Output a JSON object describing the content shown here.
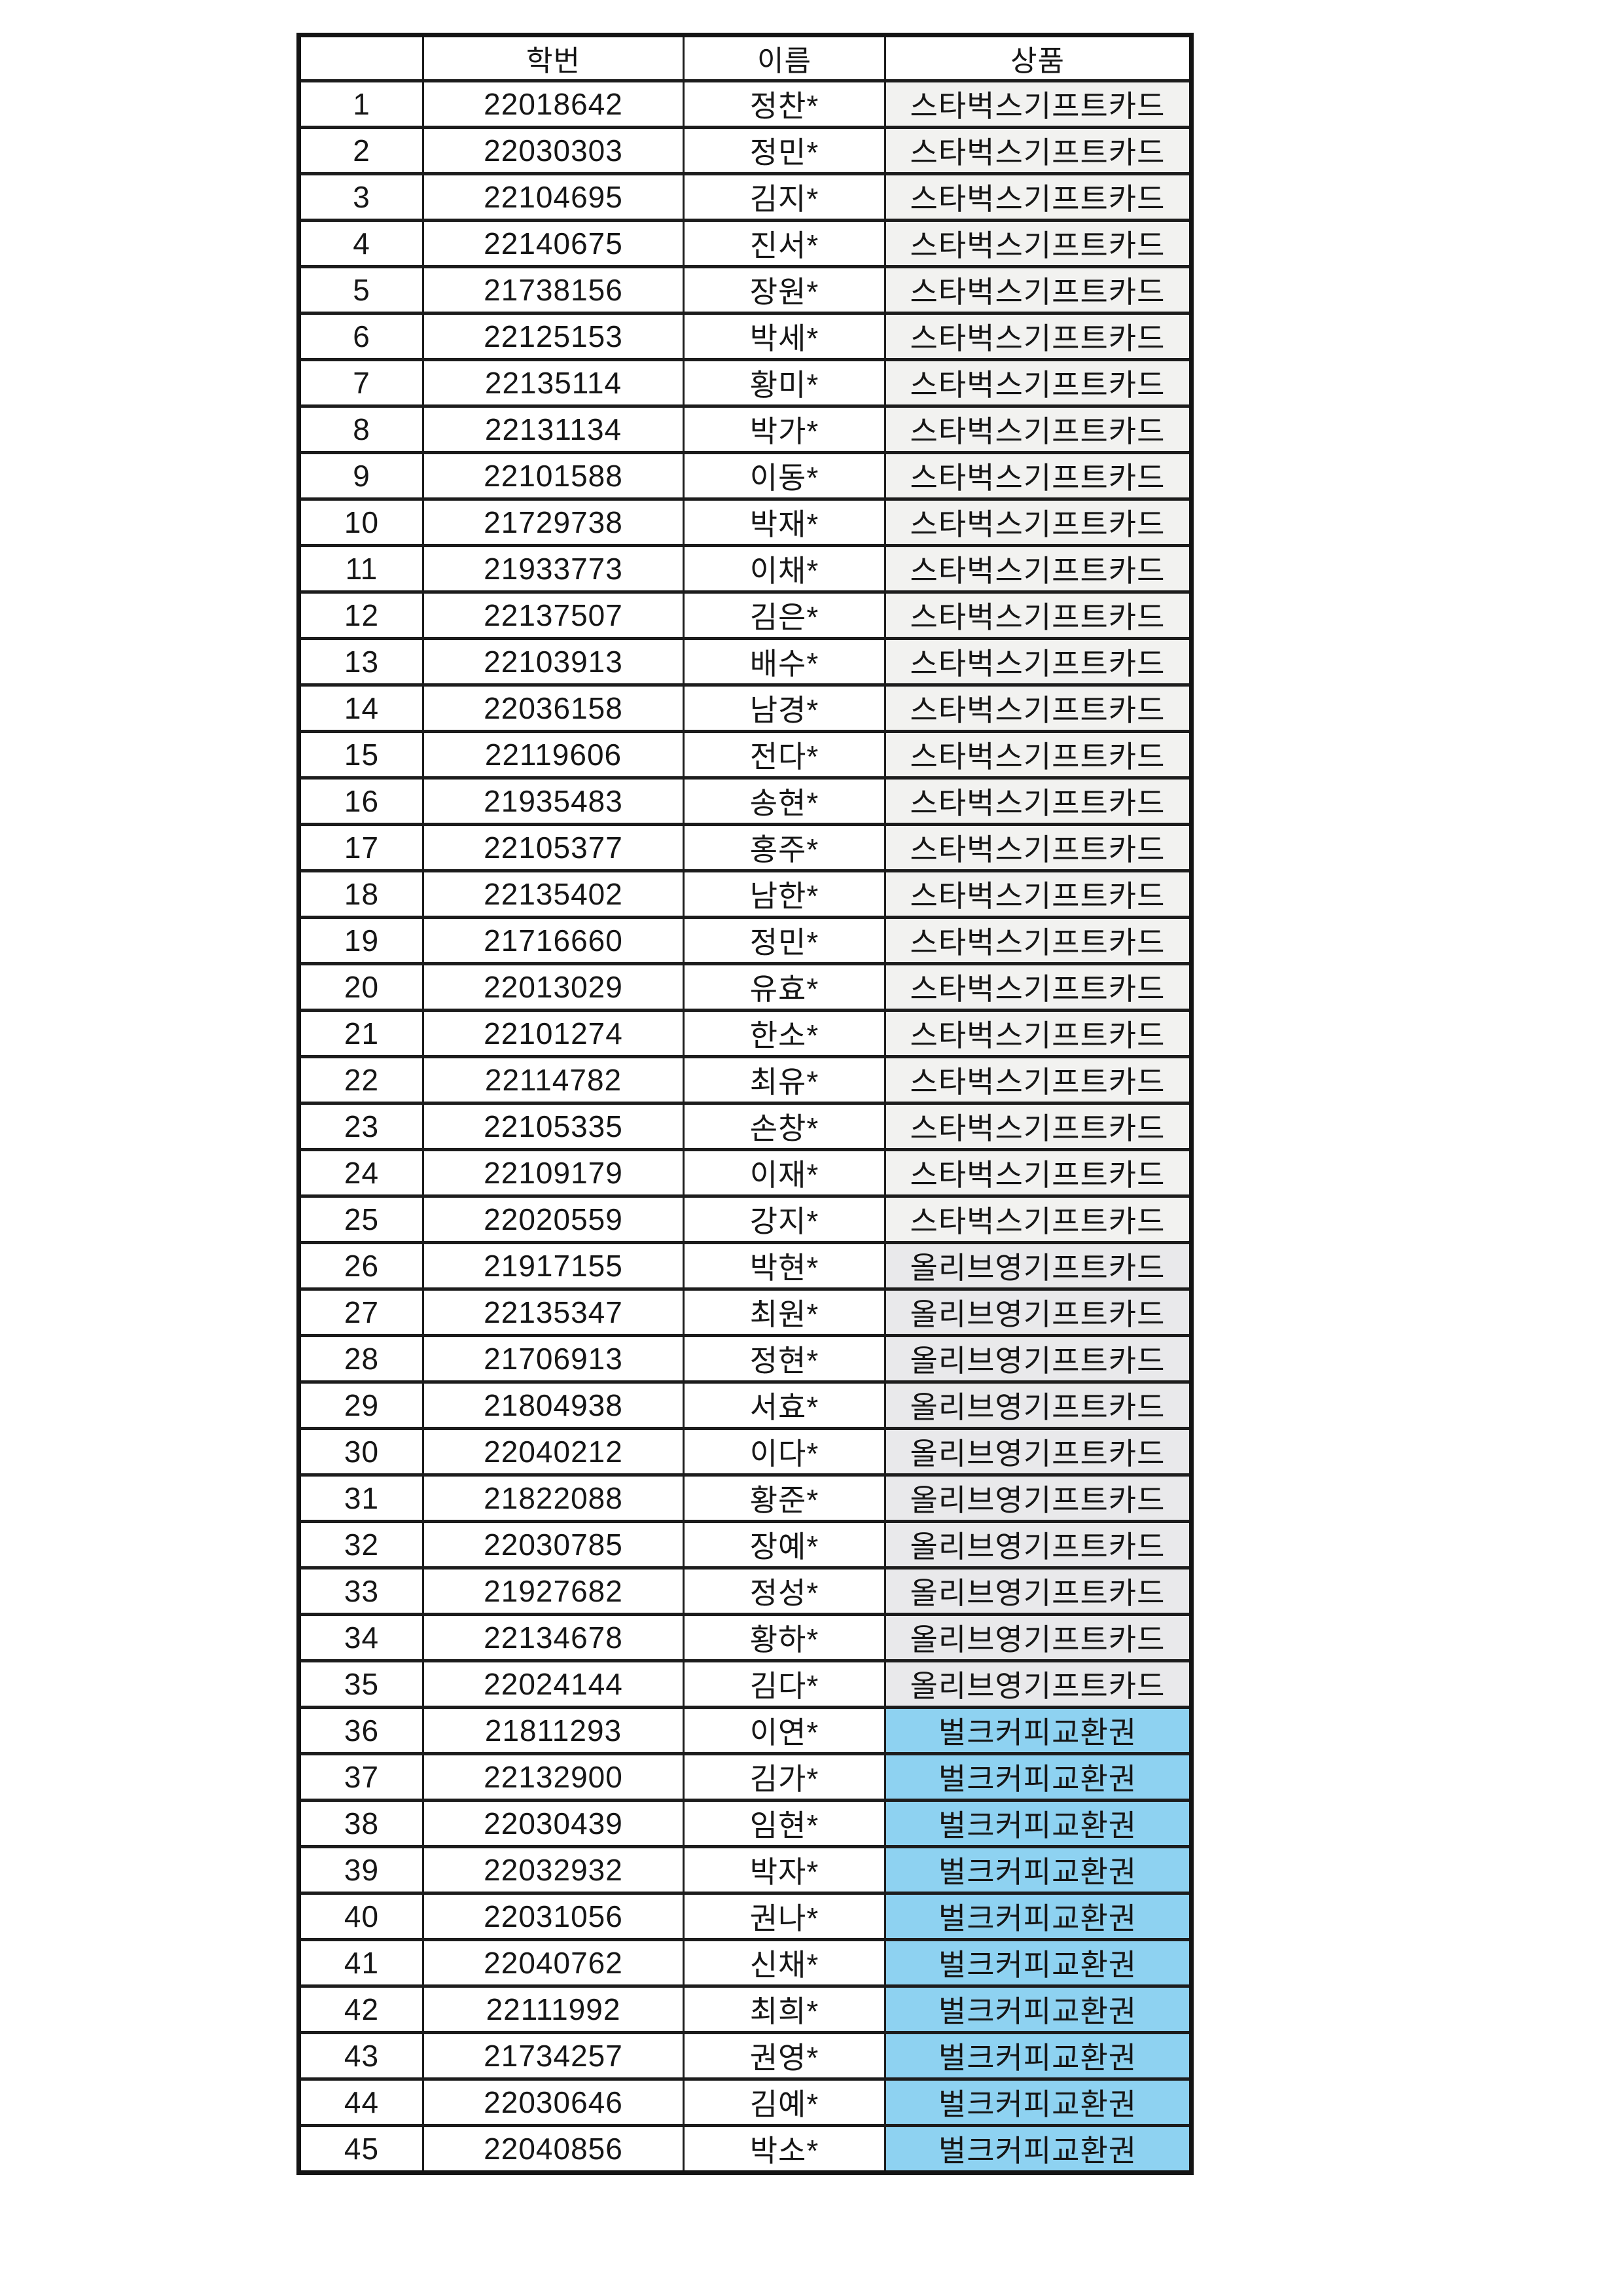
{
  "table": {
    "headers": [
      "",
      "학번",
      "이름",
      "상품"
    ],
    "rows": [
      {
        "no": "1",
        "student_id": "22018642",
        "name": "정찬*",
        "prize": "스타벅스기프트카드"
      },
      {
        "no": "2",
        "student_id": "22030303",
        "name": "정민*",
        "prize": "스타벅스기프트카드"
      },
      {
        "no": "3",
        "student_id": "22104695",
        "name": "김지*",
        "prize": "스타벅스기프트카드"
      },
      {
        "no": "4",
        "student_id": "22140675",
        "name": "진서*",
        "prize": "스타벅스기프트카드"
      },
      {
        "no": "5",
        "student_id": "21738156",
        "name": "장원*",
        "prize": "스타벅스기프트카드"
      },
      {
        "no": "6",
        "student_id": "22125153",
        "name": "박세*",
        "prize": "스타벅스기프트카드"
      },
      {
        "no": "7",
        "student_id": "22135114",
        "name": "황미*",
        "prize": "스타벅스기프트카드"
      },
      {
        "no": "8",
        "student_id": "22131134",
        "name": "박가*",
        "prize": "스타벅스기프트카드"
      },
      {
        "no": "9",
        "student_id": "22101588",
        "name": "이동*",
        "prize": "스타벅스기프트카드"
      },
      {
        "no": "10",
        "student_id": "21729738",
        "name": "박재*",
        "prize": "스타벅스기프트카드"
      },
      {
        "no": "11",
        "student_id": "21933773",
        "name": "이채*",
        "prize": "스타벅스기프트카드"
      },
      {
        "no": "12",
        "student_id": "22137507",
        "name": "김은*",
        "prize": "스타벅스기프트카드"
      },
      {
        "no": "13",
        "student_id": "22103913",
        "name": "배수*",
        "prize": "스타벅스기프트카드"
      },
      {
        "no": "14",
        "student_id": "22036158",
        "name": "남경*",
        "prize": "스타벅스기프트카드"
      },
      {
        "no": "15",
        "student_id": "22119606",
        "name": "전다*",
        "prize": "스타벅스기프트카드"
      },
      {
        "no": "16",
        "student_id": "21935483",
        "name": "송현*",
        "prize": "스타벅스기프트카드"
      },
      {
        "no": "17",
        "student_id": "22105377",
        "name": "홍주*",
        "prize": "스타벅스기프트카드"
      },
      {
        "no": "18",
        "student_id": "22135402",
        "name": "남한*",
        "prize": "스타벅스기프트카드"
      },
      {
        "no": "19",
        "student_id": "21716660",
        "name": "정민*",
        "prize": "스타벅스기프트카드"
      },
      {
        "no": "20",
        "student_id": "22013029",
        "name": "유효*",
        "prize": "스타벅스기프트카드"
      },
      {
        "no": "21",
        "student_id": "22101274",
        "name": "한소*",
        "prize": "스타벅스기프트카드"
      },
      {
        "no": "22",
        "student_id": "22114782",
        "name": "최유*",
        "prize": "스타벅스기프트카드"
      },
      {
        "no": "23",
        "student_id": "22105335",
        "name": "손창*",
        "prize": "스타벅스기프트카드"
      },
      {
        "no": "24",
        "student_id": "22109179",
        "name": "이재*",
        "prize": "스타벅스기프트카드"
      },
      {
        "no": "25",
        "student_id": "22020559",
        "name": "강지*",
        "prize": "스타벅스기프트카드"
      },
      {
        "no": "26",
        "student_id": "21917155",
        "name": "박현*",
        "prize": "올리브영기프트카드"
      },
      {
        "no": "27",
        "student_id": "22135347",
        "name": "최원*",
        "prize": "올리브영기프트카드"
      },
      {
        "no": "28",
        "student_id": "21706913",
        "name": "정현*",
        "prize": "올리브영기프트카드"
      },
      {
        "no": "29",
        "student_id": "21804938",
        "name": "서효*",
        "prize": "올리브영기프트카드"
      },
      {
        "no": "30",
        "student_id": "22040212",
        "name": "이다*",
        "prize": "올리브영기프트카드"
      },
      {
        "no": "31",
        "student_id": "21822088",
        "name": "황준*",
        "prize": "올리브영기프트카드"
      },
      {
        "no": "32",
        "student_id": "22030785",
        "name": "장예*",
        "prize": "올리브영기프트카드"
      },
      {
        "no": "33",
        "student_id": "21927682",
        "name": "정성*",
        "prize": "올리브영기프트카드"
      },
      {
        "no": "34",
        "student_id": "22134678",
        "name": "황하*",
        "prize": "올리브영기프트카드"
      },
      {
        "no": "35",
        "student_id": "22024144",
        "name": "김다*",
        "prize": "올리브영기프트카드"
      },
      {
        "no": "36",
        "student_id": "21811293",
        "name": "이연*",
        "prize": "벌크커피교환권"
      },
      {
        "no": "37",
        "student_id": "22132900",
        "name": "김가*",
        "prize": "벌크커피교환권"
      },
      {
        "no": "38",
        "student_id": "22030439",
        "name": "임현*",
        "prize": "벌크커피교환권"
      },
      {
        "no": "39",
        "student_id": "22032932",
        "name": "박자*",
        "prize": "벌크커피교환권"
      },
      {
        "no": "40",
        "student_id": "22031056",
        "name": "권나*",
        "prize": "벌크커피교환권"
      },
      {
        "no": "41",
        "student_id": "22040762",
        "name": "신채*",
        "prize": "벌크커피교환권"
      },
      {
        "no": "42",
        "student_id": "22111992",
        "name": "최희*",
        "prize": "벌크커피교환권"
      },
      {
        "no": "43",
        "student_id": "21734257",
        "name": "권영*",
        "prize": "벌크커피교환권"
      },
      {
        "no": "44",
        "student_id": "22030646",
        "name": "김예*",
        "prize": "벌크커피교환권"
      },
      {
        "no": "45",
        "student_id": "22040856",
        "name": "박소*",
        "prize": "벌크커피교환권"
      }
    ]
  },
  "prize_colors": {
    "스타벅스기프트카드": "#f2f2f0",
    "올리브영기프트카드": "#e9e9eb",
    "벌크커피교환권": "#8ed2f1"
  },
  "page": {
    "background": "#ffffff",
    "border_color": "#1c1c1c"
  }
}
